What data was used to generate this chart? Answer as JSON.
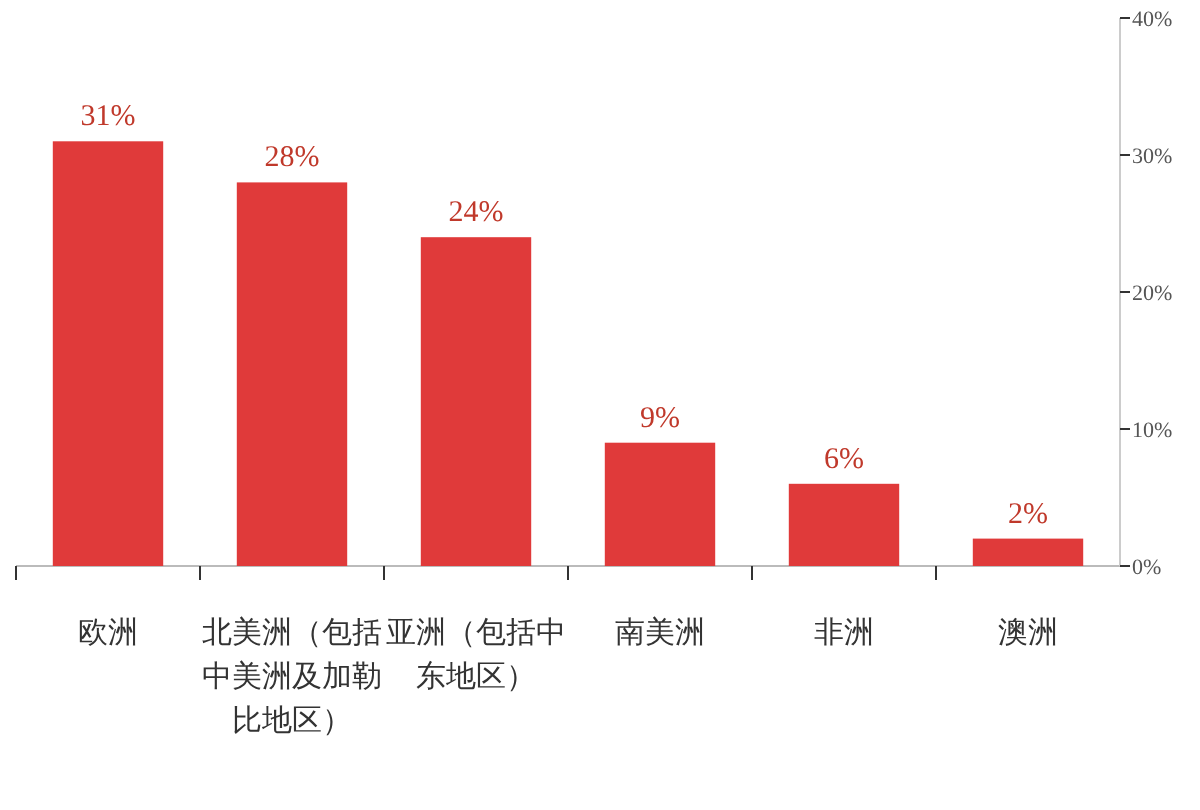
{
  "chart_data": {
    "type": "bar",
    "categories": [
      "欧洲",
      "北美洲（包括中美洲及加勒比地区）",
      "亚洲（包括中东地区）",
      "南美洲",
      "非洲",
      "澳洲"
    ],
    "values": [
      31,
      28,
      24,
      9,
      6,
      2
    ],
    "value_labels": [
      "31%",
      "28%",
      "24%",
      "9%",
      "6%",
      "2%"
    ],
    "color": "#e03a3a",
    "ylim": [
      0,
      40
    ],
    "yticks": [
      {
        "value": 0,
        "label": "0%"
      },
      {
        "value": 10,
        "label": "10%"
      },
      {
        "value": 20,
        "label": "20%"
      },
      {
        "value": 30,
        "label": "30%"
      },
      {
        "value": 40,
        "label": "40%"
      }
    ]
  }
}
